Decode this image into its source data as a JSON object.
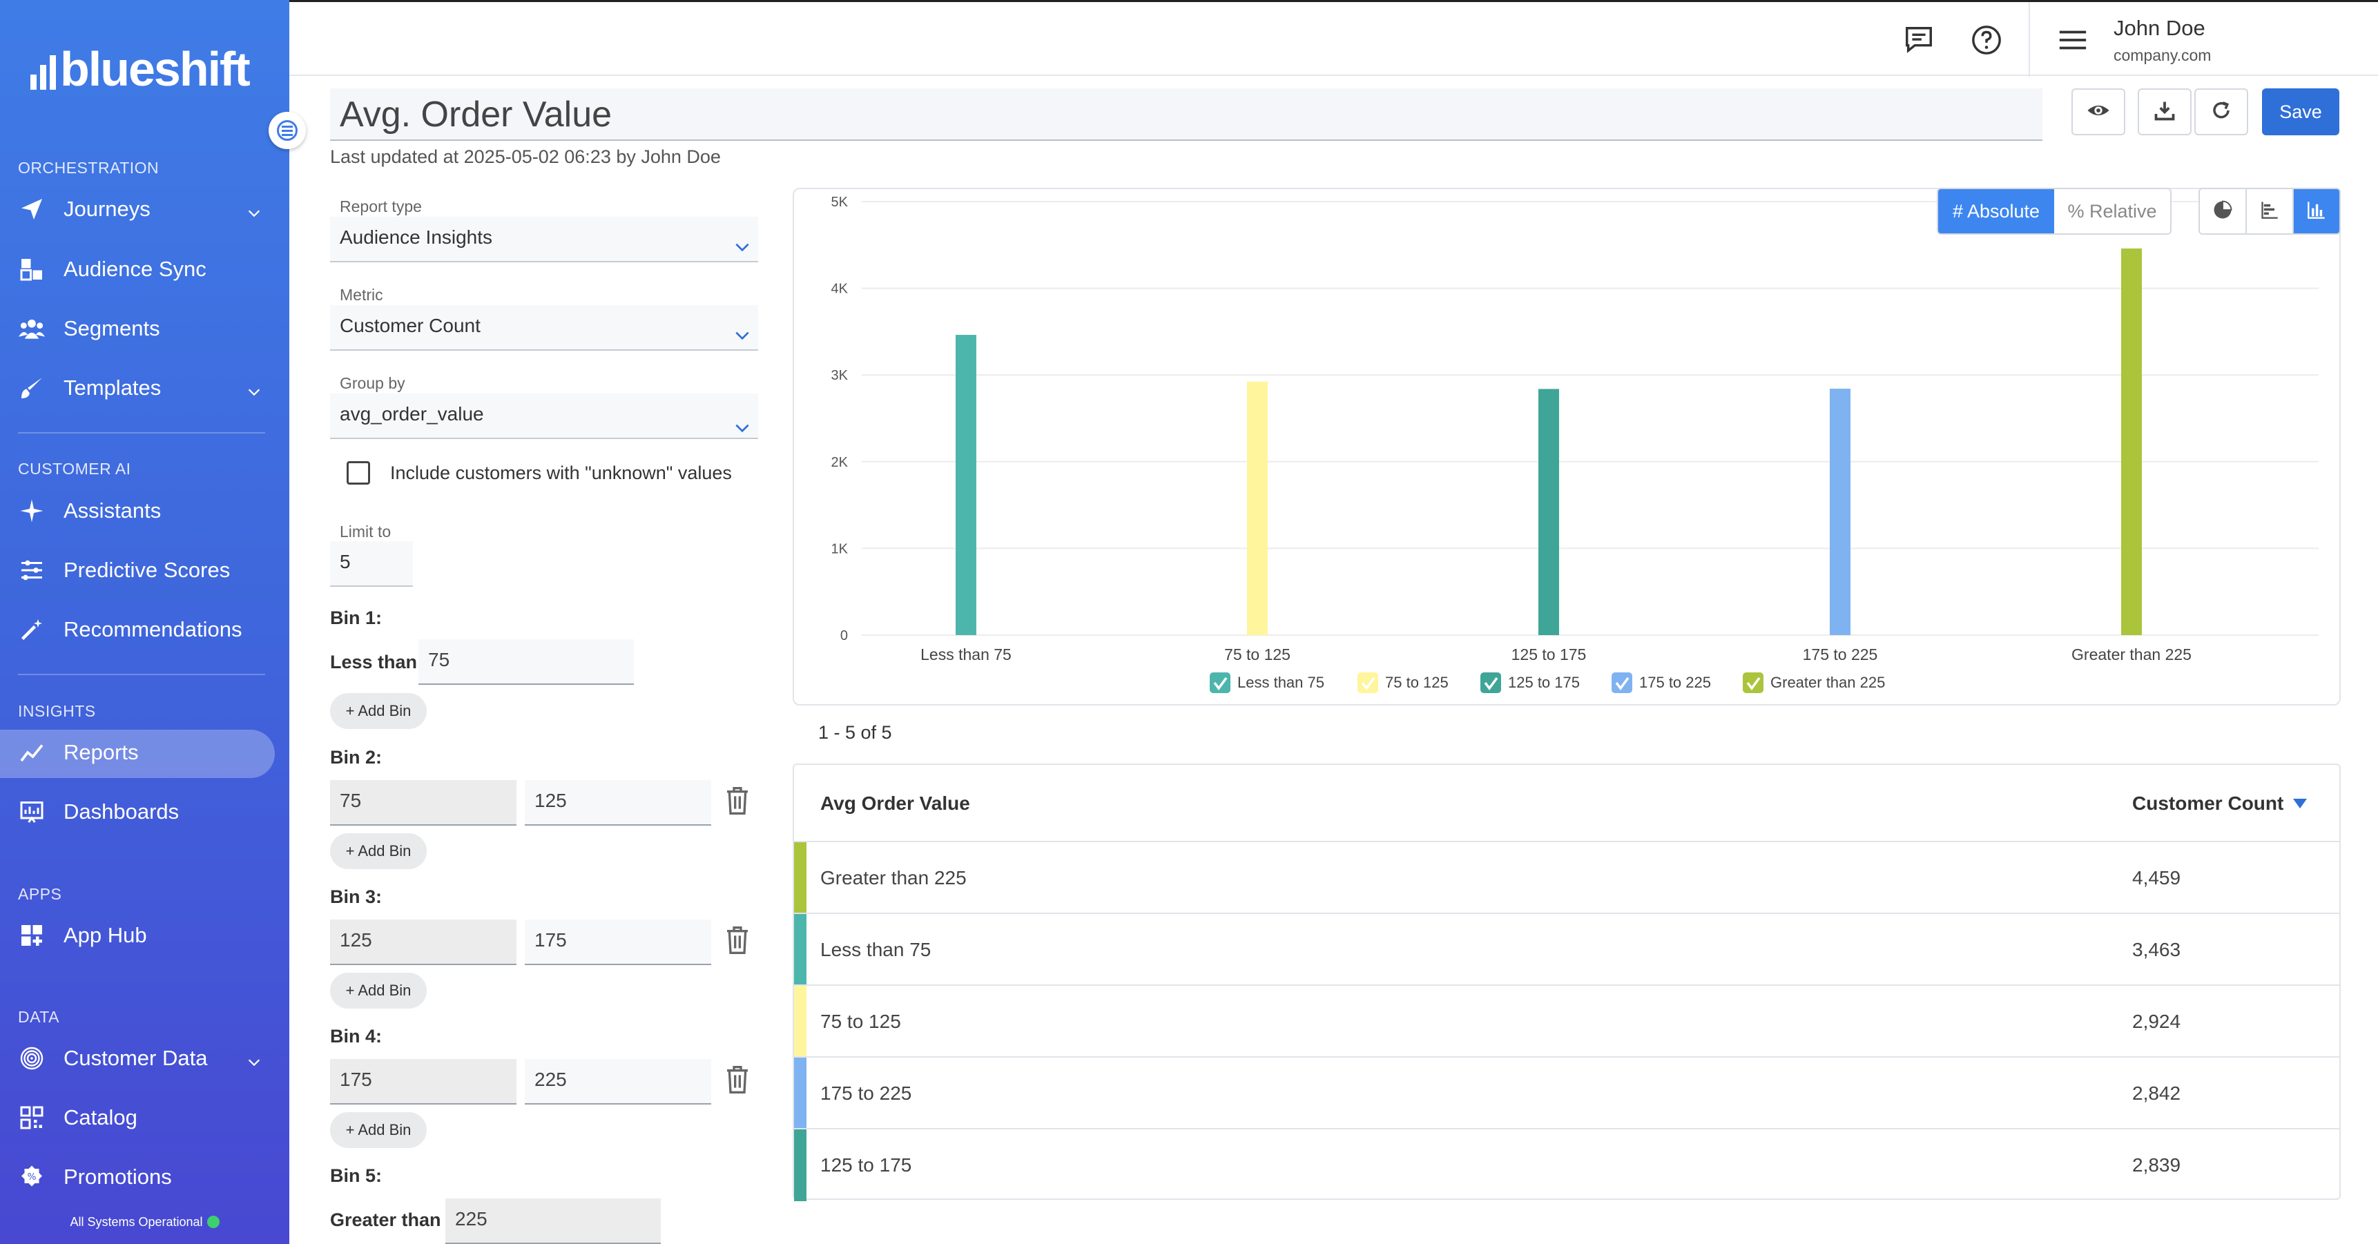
{
  "app": {
    "logo_text": "blueshift"
  },
  "sidebar": {
    "sections": [
      {
        "label": "ORCHESTRATION"
      },
      {
        "label": "CUSTOMER AI"
      },
      {
        "label": "INSIGHTS"
      },
      {
        "label": "APPS"
      },
      {
        "label": "DATA"
      }
    ],
    "items": [
      {
        "label": "Journeys",
        "icon": "paper-plane-icon"
      },
      {
        "label": "Audience Sync",
        "icon": "audience-sync-icon"
      },
      {
        "label": "Segments",
        "icon": "users-icon"
      },
      {
        "label": "Templates",
        "icon": "brush-icon"
      },
      {
        "label": "Assistants",
        "icon": "sparkle-icon"
      },
      {
        "label": "Predictive Scores",
        "icon": "sliders-icon"
      },
      {
        "label": "Recommendations",
        "icon": "magic-wand-icon"
      },
      {
        "label": "Reports",
        "icon": "trend-line-icon"
      },
      {
        "label": "Dashboards",
        "icon": "dashboard-icon"
      },
      {
        "label": "App Hub",
        "icon": "app-grid-icon"
      },
      {
        "label": "Customer Data",
        "icon": "fingerprint-icon"
      },
      {
        "label": "Catalog",
        "icon": "qr-code-icon"
      },
      {
        "label": "Promotions",
        "icon": "badge-icon"
      }
    ],
    "status": "All Systems Operational",
    "status_color": "#3ecf6e",
    "accent": "#3f7ce6"
  },
  "topbar": {
    "user_name": "John Doe",
    "user_company": "company.com"
  },
  "header": {
    "title": "Avg. Order Value",
    "last_updated": "Last updated at 2025-05-02 06:23 by John Doe",
    "save_label": "Save"
  },
  "form": {
    "report_type_label": "Report type",
    "report_type_value": "Audience Insights",
    "metric_label": "Metric",
    "metric_value": "Customer Count",
    "group_by_label": "Group by",
    "group_by_value": "avg_order_value",
    "unknown_label": "Include customers with \"unknown\" values",
    "limit_label": "Limit to",
    "limit_value": "5",
    "add_bin_label": "+ Add Bin",
    "bins": [
      {
        "title": "Bin 1:",
        "prefix": "Less than",
        "value": "75"
      },
      {
        "title": "Bin 2:",
        "from": "75",
        "to": "125"
      },
      {
        "title": "Bin 3:",
        "from": "125",
        "to": "175"
      },
      {
        "title": "Bin 4:",
        "from": "175",
        "to": "225"
      },
      {
        "title": "Bin 5:",
        "prefix": "Greater than",
        "value": "225"
      }
    ]
  },
  "toggles": {
    "absolute": "# Absolute",
    "relative": "% Relative"
  },
  "chart_data": {
    "type": "bar",
    "categories": [
      "Less than 75",
      "75 to 125",
      "125 to 175",
      "175 to 225",
      "Greater than 225"
    ],
    "values": [
      3463,
      2924,
      2839,
      2842,
      4459
    ],
    "colors": [
      "#4db6ac",
      "#fff59d",
      "#3fa597",
      "#7fb2f0",
      "#aac43c"
    ],
    "yticks": [
      "0",
      "1K",
      "2K",
      "3K",
      "4K",
      "5K"
    ],
    "ylim": [
      0,
      5000
    ],
    "legend": [
      "Less than 75",
      "75 to 125",
      "125 to 175",
      "175 to 225",
      "Greater than 225"
    ],
    "legend_position": "bottom",
    "grid": true
  },
  "table": {
    "pagination": "1 - 5 of 5",
    "col_value": "Avg Order Value",
    "col_count": "Customer Count",
    "rows": [
      {
        "name": "Greater than 225",
        "count": "4,459",
        "color": "#aac43c"
      },
      {
        "name": "Less than 75",
        "count": "3,463",
        "color": "#4db6ac"
      },
      {
        "name": "75 to 125",
        "count": "2,924",
        "color": "#fff59d"
      },
      {
        "name": "175 to 225",
        "count": "2,842",
        "color": "#7fb2f0"
      },
      {
        "name": "125 to 175",
        "count": "2,839",
        "color": "#3fa597"
      }
    ]
  }
}
